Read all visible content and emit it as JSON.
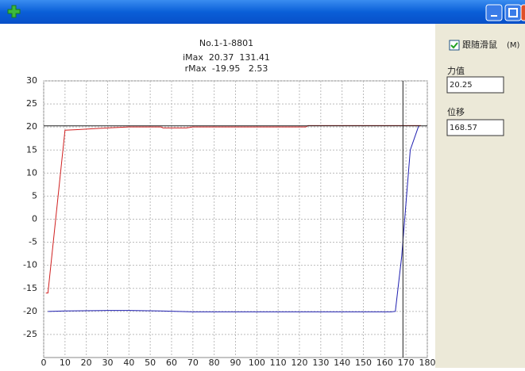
{
  "panel": {
    "follow_mouse": "跟随滑鼠",
    "follow_hotkey": "(M)",
    "force_label": "力值",
    "disp_label": "位移"
  },
  "chart_data": {
    "type": "line",
    "title": "No.1-1-8801",
    "stats": [
      "iMax  20.37  131.41",
      "rMax  -19.95   2.53"
    ],
    "xlim": [
      0,
      180
    ],
    "xticks": [
      0,
      10,
      20,
      30,
      40,
      50,
      60,
      70,
      80,
      90,
      100,
      110,
      120,
      130,
      140,
      150,
      160,
      170,
      180
    ],
    "ylim": [
      -30,
      30
    ],
    "yticks": [
      -25,
      -20,
      -15,
      -10,
      -5,
      0,
      5,
      10,
      15,
      20,
      25,
      30
    ],
    "grid": true,
    "cursor": {
      "x": 168.57,
      "y": 20.25
    },
    "series": [
      {
        "color": "#d02020",
        "x": [
          1,
          2,
          10,
          15,
          30,
          40,
          55,
          56,
          67,
          70,
          100,
          123,
          124,
          142,
          172,
          177
        ],
        "values": [
          -16,
          -16,
          19.3,
          19.4,
          19.8,
          20,
          20,
          19.8,
          19.8,
          20,
          20,
          20,
          20.3,
          20.3,
          20.3,
          20.3
        ]
      },
      {
        "color": "#2020b0",
        "x": [
          2,
          10,
          30,
          40,
          55,
          70,
          100,
          163,
          165,
          168,
          172,
          176
        ],
        "values": [
          -20,
          -19.9,
          -19.8,
          -19.8,
          -19.9,
          -20.1,
          -20.1,
          -20.1,
          -20,
          -8,
          15,
          20.3
        ]
      }
    ]
  }
}
